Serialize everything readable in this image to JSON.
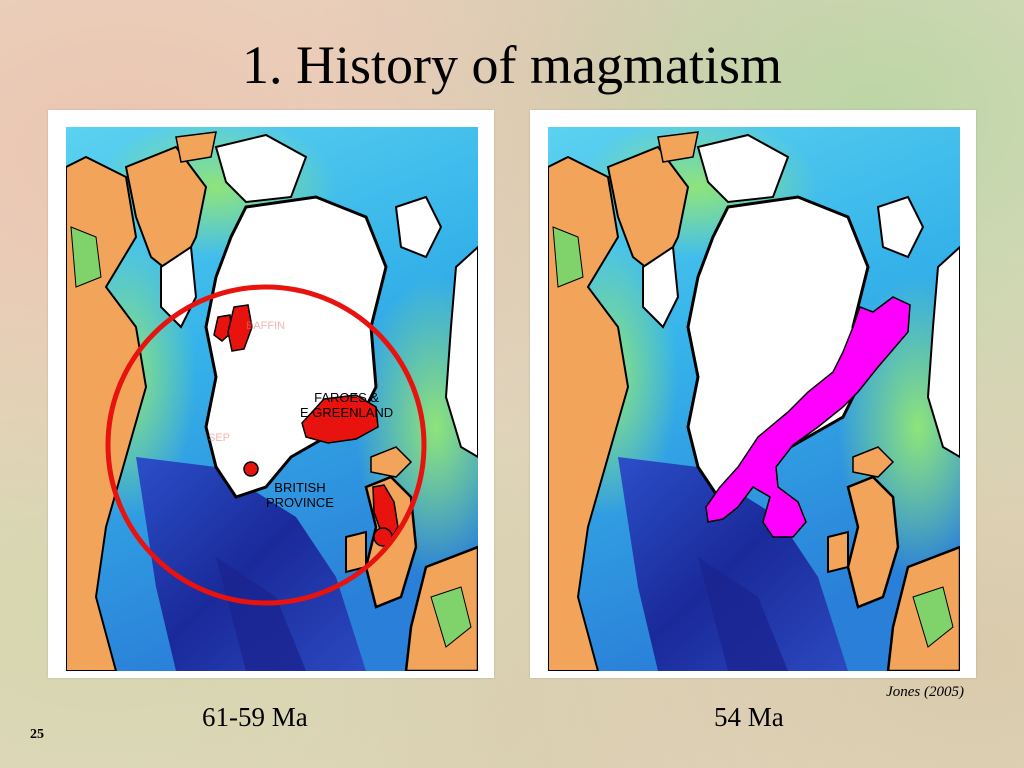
{
  "slide": {
    "title": "1. History of magmatism",
    "number": "25",
    "citation": "Jones (2005)"
  },
  "left_map": {
    "age": "61-59 Ma",
    "labels": {
      "faroes": "FAROES &\nE GREENLAND",
      "british": "BRITISH\nPROVINCE",
      "faded_north": "BAFFIN",
      "faded_sw": "SEP"
    },
    "magmatism_color": "#e8120e",
    "circle_color": "#e8120e"
  },
  "right_map": {
    "age": "54 Ma",
    "magmatism_color": "#ff00ff"
  },
  "colors": {
    "ocean_shallow": "#3ec6ee",
    "ocean_deep": "#1c2fa8",
    "land_orange": "#f2a45a",
    "ice": "#ffffff"
  }
}
